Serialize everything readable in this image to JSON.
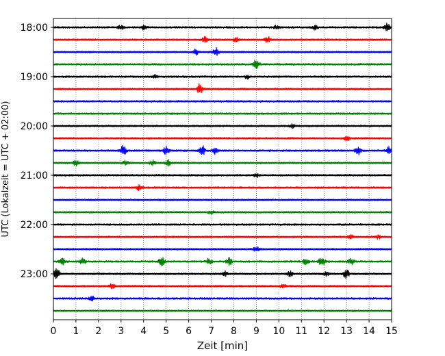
{
  "chart_data": {
    "type": "line",
    "title": "",
    "xlabel": "Zeit  [min]",
    "ylabel": "UTC (Lokalzeit = UTC + 02:00)",
    "xlim": [
      0,
      15
    ],
    "x_ticks": [
      0,
      1,
      2,
      3,
      4,
      5,
      6,
      7,
      8,
      9,
      10,
      11,
      12,
      13,
      14,
      15
    ],
    "x_tick_labels": [
      "0",
      "1",
      "2",
      "3",
      "4",
      "5",
      "6",
      "7",
      "8",
      "9",
      "10",
      "11",
      "12",
      "13",
      "14",
      "15"
    ],
    "y_tick_labels": [
      "18:00",
      "19:00",
      "20:00",
      "21:00",
      "22:00",
      "23:00"
    ],
    "y_ticks_utc": [
      "18:00",
      "19:00",
      "20:00",
      "21:00",
      "22:00",
      "23:00"
    ],
    "grid": "vertical dotted",
    "color_cycle": [
      "#000000",
      "#ff0000",
      "#0000ff",
      "#008000"
    ],
    "series": [
      {
        "start_utc": "18:00",
        "events": [
          {
            "t": 3.0,
            "a": 0.35
          },
          {
            "t": 4.0,
            "a": 0.4
          },
          {
            "t": 9.9,
            "a": 0.3
          },
          {
            "t": 11.6,
            "a": 0.35
          },
          {
            "t": 14.8,
            "a": 0.6
          }
        ]
      },
      {
        "start_utc": "18:15",
        "events": [
          {
            "t": 6.7,
            "a": 0.4
          },
          {
            "t": 8.1,
            "a": 0.35
          },
          {
            "t": 9.5,
            "a": 0.5
          }
        ]
      },
      {
        "start_utc": "18:30",
        "events": [
          {
            "t": 6.3,
            "a": 0.45
          },
          {
            "t": 7.2,
            "a": 0.7
          }
        ]
      },
      {
        "start_utc": "18:45",
        "events": [
          {
            "t": 9.0,
            "a": 0.9
          }
        ]
      },
      {
        "start_utc": "19:00",
        "events": [
          {
            "t": 4.5,
            "a": 0.3
          },
          {
            "t": 8.6,
            "a": 0.3
          }
        ]
      },
      {
        "start_utc": "19:15",
        "events": [
          {
            "t": 6.5,
            "a": 0.9
          }
        ]
      },
      {
        "start_utc": "19:30",
        "events": []
      },
      {
        "start_utc": "19:45",
        "events": []
      },
      {
        "start_utc": "20:00",
        "events": [
          {
            "t": 10.6,
            "a": 0.3
          }
        ]
      },
      {
        "start_utc": "20:15",
        "events": [
          {
            "t": 13.0,
            "a": 0.35
          }
        ]
      },
      {
        "start_utc": "20:30",
        "events": [
          {
            "t": 3.1,
            "a": 0.8
          },
          {
            "t": 5.0,
            "a": 0.7
          },
          {
            "t": 6.6,
            "a": 0.8
          },
          {
            "t": 7.2,
            "a": 0.6
          },
          {
            "t": 13.5,
            "a": 0.7
          },
          {
            "t": 14.9,
            "a": 0.7
          }
        ]
      },
      {
        "start_utc": "20:45",
        "events": [
          {
            "t": 1.0,
            "a": 0.5
          },
          {
            "t": 3.2,
            "a": 0.35
          },
          {
            "t": 4.4,
            "a": 0.4
          },
          {
            "t": 5.1,
            "a": 0.5
          }
        ]
      },
      {
        "start_utc": "21:00",
        "events": [
          {
            "t": 9.0,
            "a": 0.3
          }
        ]
      },
      {
        "start_utc": "21:15",
        "events": [
          {
            "t": 3.8,
            "a": 0.4
          }
        ]
      },
      {
        "start_utc": "21:30",
        "events": []
      },
      {
        "start_utc": "21:45",
        "events": [
          {
            "t": 7.0,
            "a": 0.3
          }
        ]
      },
      {
        "start_utc": "22:00",
        "events": []
      },
      {
        "start_utc": "22:15",
        "events": [
          {
            "t": 13.2,
            "a": 0.3
          },
          {
            "t": 14.4,
            "a": 0.3
          }
        ]
      },
      {
        "start_utc": "22:30",
        "events": [
          {
            "t": 9.0,
            "a": 0.4
          }
        ]
      },
      {
        "start_utc": "22:45",
        "events": [
          {
            "t": 0.4,
            "a": 0.5
          },
          {
            "t": 1.3,
            "a": 0.5
          },
          {
            "t": 4.8,
            "a": 0.7
          },
          {
            "t": 6.9,
            "a": 0.5
          },
          {
            "t": 7.8,
            "a": 0.6
          },
          {
            "t": 11.2,
            "a": 0.6
          },
          {
            "t": 11.9,
            "a": 0.9
          },
          {
            "t": 13.2,
            "a": 0.5
          }
        ]
      },
      {
        "start_utc": "23:00",
        "events": [
          {
            "t": 0.15,
            "a": 0.9
          },
          {
            "t": 7.6,
            "a": 0.4
          },
          {
            "t": 10.5,
            "a": 0.45
          },
          {
            "t": 12.1,
            "a": 0.35
          },
          {
            "t": 13.0,
            "a": 0.8
          }
        ]
      },
      {
        "start_utc": "23:15",
        "events": [
          {
            "t": 2.6,
            "a": 0.4
          },
          {
            "t": 10.2,
            "a": 0.35
          }
        ]
      },
      {
        "start_utc": "23:30",
        "events": [
          {
            "t": 1.7,
            "a": 0.4
          }
        ]
      },
      {
        "start_utc": "23:45",
        "events": []
      }
    ]
  }
}
